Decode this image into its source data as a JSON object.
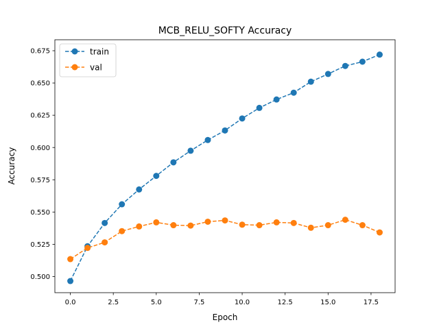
{
  "chart_data": {
    "type": "line",
    "title": "MCB_RELU_SOFTY Accuracy",
    "xlabel": "Epoch",
    "ylabel": "Accuracy",
    "xlim": [
      -0.9,
      18.9
    ],
    "ylim": [
      0.4875,
      0.6835
    ],
    "x_ticks": [
      0.0,
      2.5,
      5.0,
      7.5,
      10.0,
      12.5,
      15.0,
      17.5
    ],
    "x_tick_labels": [
      "0.0",
      "2.5",
      "5.0",
      "7.5",
      "10.0",
      "12.5",
      "15.0",
      "17.5"
    ],
    "y_ticks": [
      0.5,
      0.525,
      0.55,
      0.575,
      0.6,
      0.625,
      0.65,
      0.675
    ],
    "y_tick_labels": [
      "0.500",
      "0.525",
      "0.550",
      "0.575",
      "0.600",
      "0.625",
      "0.650",
      "0.675"
    ],
    "grid": false,
    "legend_position": "upper-left",
    "x": [
      0,
      1,
      2,
      3,
      4,
      5,
      6,
      7,
      8,
      9,
      10,
      11,
      12,
      13,
      14,
      15,
      16,
      17,
      18
    ],
    "series": [
      {
        "name": "train",
        "color": "#1f77b4",
        "line_style": "dashed",
        "marker": "circle",
        "values": [
          0.4965,
          0.5235,
          0.5415,
          0.556,
          0.5675,
          0.578,
          0.5885,
          0.5975,
          0.6058,
          0.6132,
          0.6225,
          0.6307,
          0.6372,
          0.6425,
          0.651,
          0.657,
          0.6632,
          0.6665,
          0.672
        ]
      },
      {
        "name": "val",
        "color": "#ff7f0e",
        "line_style": "dashed",
        "marker": "circle",
        "values": [
          0.5135,
          0.5222,
          0.5265,
          0.5352,
          0.5388,
          0.542,
          0.5398,
          0.5395,
          0.5425,
          0.5435,
          0.5402,
          0.5398,
          0.542,
          0.5415,
          0.5378,
          0.5398,
          0.544,
          0.5398,
          0.5342
        ]
      }
    ]
  }
}
